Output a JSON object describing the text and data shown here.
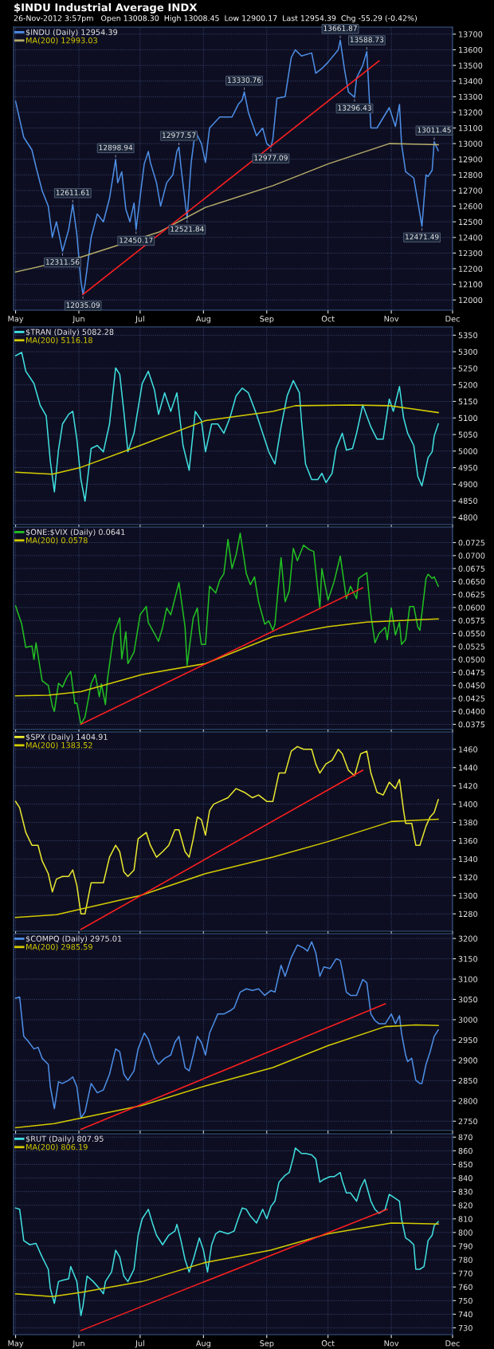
{
  "chart_data": [
    {
      "type": "line",
      "title": "$INDU Industrial Average INDX",
      "subtitle": "26-Nov-2012 3:57pm   Open 13008.30  High 13008.45  Low 12900.17  Last 12954.39  Chg -55.29 (-0.42%)",
      "xlim": [
        "2012-04-30",
        "2012-12-01"
      ],
      "xticks": [
        {
          "value": "2012-05-01",
          "label": "May"
        },
        {
          "value": "2012-06-01",
          "label": "Jun"
        },
        {
          "value": "2012-07-01",
          "label": "Jul"
        },
        {
          "value": "2012-08-01",
          "label": "Aug"
        },
        {
          "value": "2012-09-01",
          "label": "Sep"
        },
        {
          "value": "2012-10-01",
          "label": "Oct"
        },
        {
          "value": "2012-11-01",
          "label": "Nov"
        },
        {
          "value": "2012-12-01",
          "label": "Dec"
        }
      ],
      "ylim": [
        11935,
        13745
      ],
      "yticks": [
        12000,
        12100,
        12200,
        12300,
        12400,
        12500,
        12600,
        12700,
        12800,
        12900,
        13000,
        13100,
        13200,
        13300,
        13400,
        13500,
        13600,
        13700
      ],
      "grid": true,
      "legend": "top left",
      "line_style": "solid",
      "series": [
        {
          "name": "$INDU (Daily) 12954.39",
          "color": "#4d8fe6",
          "x": [
            "2012-05-01",
            "2012-05-05",
            "2012-05-09",
            "2012-05-11",
            "2012-05-14",
            "2012-05-17",
            "2012-05-19",
            "2012-05-21",
            "2012-05-24",
            "2012-05-27",
            "2012-05-29",
            "2012-05-31",
            "2012-06-02",
            "2012-06-03",
            "2012-06-04",
            "2012-06-07",
            "2012-06-10",
            "2012-06-13",
            "2012-06-16",
            "2012-06-19",
            "2012-06-20",
            "2012-06-22",
            "2012-06-24",
            "2012-06-26",
            "2012-06-28",
            "2012-06-29",
            "2012-07-03",
            "2012-07-05",
            "2012-07-06",
            "2012-07-09",
            "2012-07-11",
            "2012-07-14",
            "2012-07-17",
            "2012-07-19",
            "2012-07-20",
            "2012-07-21",
            "2012-07-24",
            "2012-07-26",
            "2012-07-28",
            "2012-07-31",
            "2012-08-02",
            "2012-08-04",
            "2012-08-09",
            "2012-08-15",
            "2012-08-18",
            "2012-08-20",
            "2012-08-21",
            "2012-08-23",
            "2012-08-27",
            "2012-08-30",
            "2012-09-01",
            "2012-09-03",
            "2012-09-04",
            "2012-09-06",
            "2012-09-10",
            "2012-09-13",
            "2012-09-15",
            "2012-09-18",
            "2012-09-23",
            "2012-09-25",
            "2012-09-28",
            "2012-10-01",
            "2012-10-06",
            "2012-10-07",
            "2012-10-09",
            "2012-10-11",
            "2012-10-14",
            "2012-10-15",
            "2012-10-18",
            "2012-10-20",
            "2012-10-22",
            "2012-10-25",
            "2012-10-31",
            "2012-11-03",
            "2012-11-05",
            "2012-11-06",
            "2012-11-08",
            "2012-11-12",
            "2012-11-15",
            "2012-11-16",
            "2012-11-18",
            "2012-11-19",
            "2012-11-21",
            "2012-11-22",
            "2012-11-24"
          ],
          "values": [
            13270,
            13040,
            12960,
            12850,
            12700,
            12600,
            12400,
            12500,
            12311.56,
            12450,
            12611.61,
            12420,
            12120,
            12035.09,
            12100,
            12400,
            12550,
            12500,
            12650,
            12898.94,
            12750,
            12820,
            12580,
            12500,
            12620,
            12450.17,
            12870,
            12950,
            12880,
            12750,
            12600,
            12750,
            12800,
            12950,
            12977.57,
            12850,
            12521.84,
            12880,
            13080,
            13000,
            12880,
            13100,
            13170,
            13170,
            13250,
            13280,
            13330.76,
            13200,
            13050,
            13100,
            13000,
            12977.09,
            13030,
            13290,
            13300,
            13550,
            13600,
            13560,
            13580,
            13450,
            13480,
            13520,
            13600,
            13661.87,
            13480,
            13330,
            13296.43,
            13420,
            13500,
            13588.73,
            13100,
            13100,
            13230,
            13110,
            13250,
            13000,
            12820,
            12780,
            12550,
            12471.49,
            12800,
            12790,
            12830,
            13011.45,
            12954.39
          ]
        },
        {
          "name": "MA(200) 12993.03",
          "color": "#b5ad6a",
          "x": [
            "2012-05-01",
            "2012-06-02",
            "2012-07-10",
            "2012-08-02",
            "2012-09-04",
            "2012-10-01",
            "2012-10-31",
            "2012-11-24"
          ],
          "values": [
            12179,
            12274,
            12433,
            12592,
            12731,
            12870,
            13000,
            12993.03
          ]
        },
        {
          "color": "#ff2020",
          "x": [
            "2012-06-03",
            "2012-10-26"
          ],
          "values": [
            12035,
            13529
          ]
        }
      ],
      "annotations": [
        {
          "text": "13661.87",
          "x": "2012-10-07",
          "y": 13661.87
        },
        {
          "text": "13588.73",
          "x": "2012-10-20",
          "y": 13588.73
        },
        {
          "text": "13330.76",
          "x": "2012-08-21",
          "y": 13330.76
        },
        {
          "text": "12977.57",
          "x": "2012-07-20",
          "y": 12977.57
        },
        {
          "text": "12898.94",
          "x": "2012-06-19",
          "y": 12898.94
        },
        {
          "text": "12611.61",
          "x": "2012-05-29",
          "y": 12611.61
        },
        {
          "text": "12311.56",
          "x": "2012-05-24",
          "y": 12311.56
        },
        {
          "text": "12035.09",
          "x": "2012-06-03",
          "y": 12035.09
        },
        {
          "text": "12450.17",
          "x": "2012-06-29",
          "y": 12450.17
        },
        {
          "text": "12521.84",
          "x": "2012-07-24",
          "y": 12521.84
        },
        {
          "text": "12977.09",
          "x": "2012-09-03",
          "y": 12977.09
        },
        {
          "text": "13296.43",
          "x": "2012-10-14",
          "y": 13296.43
        },
        {
          "text": "12471.49",
          "x": "2012-11-16",
          "y": 12471.49
        },
        {
          "text": "13011.45",
          "x": "2012-11-22",
          "y": 13011.45
        }
      ]
    },
    {
      "type": "line",
      "tick_labels": "y",
      "xlim": [
        "2012-04-30",
        "2012-12-01"
      ],
      "xticks": [
        {
          "value": "2012-05-01",
          "label": null
        },
        {
          "value": "2012-06-01",
          "label": null
        },
        {
          "value": "2012-07-01",
          "label": null
        },
        {
          "value": "2012-08-01",
          "label": null
        },
        {
          "value": "2012-09-01",
          "label": null
        },
        {
          "value": "2012-10-01",
          "label": null
        },
        {
          "value": "2012-11-01",
          "label": null
        },
        {
          "value": "2012-12-01",
          "label": null
        }
      ],
      "ylim": [
        4778,
        5375
      ],
      "yticks": [
        4800,
        4850,
        4900,
        4950,
        5000,
        5050,
        5100,
        5150,
        5200,
        5250,
        5300,
        5350
      ],
      "grid": true,
      "legend": "top left",
      "line_style": "solid",
      "series": [
        {
          "name": "$TRAN (Daily) 5082.28",
          "color": "#40e0e0",
          "x": [
            "2012-05-01",
            "2012-05-04",
            "2012-05-06",
            "2012-05-10",
            "2012-05-13",
            "2012-05-16",
            "2012-05-18",
            "2012-05-20",
            "2012-05-22",
            "2012-05-24",
            "2012-05-27",
            "2012-05-29",
            "2012-05-31",
            "2012-06-02",
            "2012-06-04",
            "2012-06-07",
            "2012-06-10",
            "2012-06-13",
            "2012-06-16",
            "2012-06-19",
            "2012-06-21",
            "2012-06-23",
            "2012-06-25",
            "2012-06-28",
            "2012-07-02",
            "2012-07-05",
            "2012-07-08",
            "2012-07-10",
            "2012-07-13",
            "2012-07-16",
            "2012-07-19",
            "2012-07-22",
            "2012-07-25",
            "2012-07-28",
            "2012-07-31",
            "2012-08-02",
            "2012-08-05",
            "2012-08-08",
            "2012-08-11",
            "2012-08-14",
            "2012-08-17",
            "2012-08-20",
            "2012-08-23",
            "2012-08-27",
            "2012-08-30",
            "2012-09-02",
            "2012-09-05",
            "2012-09-08",
            "2012-09-11",
            "2012-09-14",
            "2012-09-17",
            "2012-09-18",
            "2012-09-20",
            "2012-09-23",
            "2012-09-26",
            "2012-09-28",
            "2012-09-30",
            "2012-10-03",
            "2012-10-05",
            "2012-10-08",
            "2012-10-10",
            "2012-10-13",
            "2012-10-15",
            "2012-10-18",
            "2012-10-22",
            "2012-10-25",
            "2012-10-28",
            "2012-10-31",
            "2012-11-02",
            "2012-11-05",
            "2012-11-07",
            "2012-11-09",
            "2012-11-12",
            "2012-11-14",
            "2012-11-16",
            "2012-11-19",
            "2012-11-21",
            "2012-11-22",
            "2012-11-24"
          ],
          "values": [
            5288,
            5298,
            5241,
            5204,
            5139,
            5106,
            4970,
            4877,
            5003,
            5082,
            5111,
            5120,
            5036,
            4914,
            4849,
            5008,
            5017,
            4998,
            5082,
            5251,
            5232,
            5120,
            4998,
            5054,
            5204,
            5241,
            5185,
            5111,
            5176,
            5120,
            5176,
            5017,
            4942,
            5120,
            5092,
            4998,
            5082,
            5082,
            5054,
            5101,
            5167,
            5190,
            5176,
            5111,
            5054,
            4998,
            4961,
            5073,
            5167,
            5213,
            5176,
            5092,
            4961,
            4914,
            4914,
            4933,
            4905,
            4933,
            5008,
            5054,
            5003,
            5008,
            5054,
            5139,
            5073,
            5036,
            5036,
            5157,
            5120,
            5195,
            5101,
            5054,
            5017,
            4923,
            4895,
            4980,
            4998,
            5045,
            5082.28
          ]
        },
        {
          "name": "MA(200) 5116.18",
          "color": "#d4cc00",
          "x": [
            "2012-05-01",
            "2012-05-19",
            "2012-06-02",
            "2012-07-01",
            "2012-08-02",
            "2012-09-04",
            "2012-09-15",
            "2012-10-13",
            "2012-10-31",
            "2012-11-24"
          ],
          "values": [
            4936,
            4930,
            4951,
            5017,
            5092,
            5120,
            5137,
            5139,
            5137,
            5116.18
          ]
        }
      ]
    },
    {
      "type": "line",
      "tick_labels": "y",
      "xlim": [
        "2012-04-30",
        "2012-12-01"
      ],
      "xticks": [
        {
          "value": "2012-05-01",
          "label": null
        },
        {
          "value": "2012-06-01",
          "label": null
        },
        {
          "value": "2012-07-01",
          "label": null
        },
        {
          "value": "2012-08-01",
          "label": null
        },
        {
          "value": "2012-09-01",
          "label": null
        },
        {
          "value": "2012-10-01",
          "label": null
        },
        {
          "value": "2012-11-01",
          "label": null
        },
        {
          "value": "2012-12-01",
          "label": null
        }
      ],
      "ylim": [
        0.0365,
        0.0755
      ],
      "yticks": [
        0.0375,
        {
          "value": 0.04,
          "label": "0.0400"
        },
        0.0425,
        {
          "value": 0.045,
          "label": "0.0450"
        },
        0.0475,
        {
          "value": 0.05,
          "label": "0.0500"
        },
        0.0525,
        {
          "value": 0.055,
          "label": "0.0550"
        },
        0.0575,
        {
          "value": 0.06,
          "label": "0.0600"
        },
        0.0625,
        {
          "value": 0.065,
          "label": "0.0650"
        },
        0.0675,
        {
          "value": 0.07,
          "label": "0.0700"
        },
        0.0725
      ],
      "grid": true,
      "legend": "top left",
      "line_style": "solid",
      "series": [
        {
          "name": "$ONE:$VIX (Daily) 0.0641",
          "color": "#22c022",
          "x": [
            "2012-05-01",
            "2012-05-04",
            "2012-05-06",
            "2012-05-09",
            "2012-05-10",
            "2012-05-11",
            "2012-05-14",
            "2012-05-17",
            "2012-05-19",
            "2012-05-20",
            "2012-05-22",
            "2012-05-24",
            "2012-05-26",
            "2012-05-28",
            "2012-05-30",
            "2012-05-31",
            "2012-06-02",
            "2012-06-04",
            "2012-06-07",
            "2012-06-09",
            "2012-06-11",
            "2012-06-12",
            "2012-06-14",
            "2012-06-15",
            "2012-06-18",
            "2012-06-21",
            "2012-06-22",
            "2012-06-24",
            "2012-06-25",
            "2012-06-28",
            "2012-07-01",
            "2012-07-04",
            "2012-07-05",
            "2012-07-08",
            "2012-07-10",
            "2012-07-12",
            "2012-07-14",
            "2012-07-16",
            "2012-07-18",
            "2012-07-20",
            "2012-07-23",
            "2012-07-24",
            "2012-07-27",
            "2012-07-29",
            "2012-07-30",
            "2012-07-31",
            "2012-08-02",
            "2012-08-04",
            "2012-08-07",
            "2012-08-09",
            "2012-08-11",
            "2012-08-13",
            "2012-08-15",
            "2012-08-17",
            "2012-08-19",
            "2012-08-22",
            "2012-08-24",
            "2012-08-26",
            "2012-08-28",
            "2012-08-31",
            "2012-09-02",
            "2012-09-04",
            "2012-09-05",
            "2012-09-08",
            "2012-09-10",
            "2012-09-12",
            "2012-09-14",
            "2012-09-16",
            "2012-09-19",
            "2012-09-22",
            "2012-09-24",
            "2012-09-27",
            "2012-09-28",
            "2012-10-01",
            "2012-10-04",
            "2012-10-07",
            "2012-10-10",
            "2012-10-12",
            "2012-10-15",
            "2012-10-16",
            "2012-10-20",
            "2012-10-22",
            "2012-10-24",
            "2012-10-26",
            "2012-10-29",
            "2012-10-30",
            "2012-11-01",
            "2012-11-03",
            "2012-11-05",
            "2012-11-06",
            "2012-11-08",
            "2012-11-10",
            "2012-11-12",
            "2012-11-14",
            "2012-11-15",
            "2012-11-18",
            "2012-11-19",
            "2012-11-21",
            "2012-11-22",
            "2012-11-24"
          ],
          "values": [
            0.0603,
            0.0568,
            0.0523,
            0.0526,
            0.05,
            0.0532,
            0.0459,
            0.045,
            0.041,
            0.04,
            0.0454,
            0.0447,
            0.0465,
            0.0477,
            0.0415,
            0.0416,
            0.0375,
            0.0389,
            0.0453,
            0.0471,
            0.0428,
            0.0453,
            0.0413,
            0.0462,
            0.0547,
            0.058,
            0.0501,
            0.0553,
            0.0492,
            0.0514,
            0.0586,
            0.0602,
            0.0571,
            0.055,
            0.0535,
            0.0562,
            0.0599,
            0.0586,
            0.0617,
            0.0648,
            0.0562,
            0.0489,
            0.058,
            0.0599,
            0.0556,
            0.0529,
            0.0529,
            0.0641,
            0.0628,
            0.0653,
            0.0665,
            0.0731,
            0.0675,
            0.0702,
            0.0743,
            0.0665,
            0.0644,
            0.0659,
            0.0611,
            0.0568,
            0.0574,
            0.0556,
            0.0568,
            0.0696,
            0.0611,
            0.0632,
            0.0714,
            0.069,
            0.072,
            0.0711,
            0.0708,
            0.0599,
            0.0675,
            0.0614,
            0.065,
            0.0699,
            0.0617,
            0.0641,
            0.0617,
            0.0656,
            0.0667,
            0.0586,
            0.0532,
            0.055,
            0.0562,
            0.0538,
            0.0599,
            0.0547,
            0.0571,
            0.0529,
            0.0538,
            0.0602,
            0.0602,
            0.0562,
            0.0556,
            0.0656,
            0.0664,
            0.0656,
            0.0659,
            0.0641
          ]
        },
        {
          "name": "MA(200) 0.0578",
          "color": "#d4cc00",
          "x": [
            "2012-05-01",
            "2012-05-17",
            "2012-06-02",
            "2012-07-02",
            "2012-08-02",
            "2012-09-04",
            "2012-10-01",
            "2012-10-20",
            "2012-11-24"
          ],
          "values": [
            0.043,
            0.0431,
            0.0438,
            0.0471,
            0.0492,
            0.0544,
            0.0563,
            0.0572,
            0.0578
          ]
        },
        {
          "color": "#ff2020",
          "x": [
            "2012-06-02",
            "2012-10-18"
          ],
          "values": [
            0.0375,
            0.0638
          ]
        }
      ]
    },
    {
      "type": "line",
      "tick_labels": "y",
      "xlim": [
        "2012-04-30",
        "2012-12-01"
      ],
      "xticks": [
        {
          "value": "2012-05-01",
          "label": null
        },
        {
          "value": "2012-06-01",
          "label": null
        },
        {
          "value": "2012-07-01",
          "label": null
        },
        {
          "value": "2012-08-01",
          "label": null
        },
        {
          "value": "2012-09-01",
          "label": null
        },
        {
          "value": "2012-10-01",
          "label": null
        },
        {
          "value": "2012-11-01",
          "label": null
        },
        {
          "value": "2012-12-01",
          "label": null
        }
      ],
      "ylim": [
        1261,
        1479
      ],
      "yticks": [
        1280,
        1300,
        1320,
        1340,
        1360,
        1380,
        1400,
        1420,
        1440,
        1460
      ],
      "grid": true,
      "legend": "top left",
      "line_style": "solid",
      "series": [
        {
          "name": "$SPX (Daily) 1404.91",
          "color": "#e8e830",
          "x": [
            "2012-05-01",
            "2012-05-03",
            "2012-05-06",
            "2012-05-09",
            "2012-05-12",
            "2012-05-14",
            "2012-05-17",
            "2012-05-19",
            "2012-05-21",
            "2012-05-24",
            "2012-05-27",
            "2012-05-29",
            "2012-05-31",
            "2012-06-02",
            "2012-06-04",
            "2012-06-07",
            "2012-06-10",
            "2012-06-13",
            "2012-06-16",
            "2012-06-19",
            "2012-06-21",
            "2012-06-23",
            "2012-06-25",
            "2012-06-28",
            "2012-06-30",
            "2012-07-04",
            "2012-07-06",
            "2012-07-09",
            "2012-07-12",
            "2012-07-15",
            "2012-07-18",
            "2012-07-20",
            "2012-07-23",
            "2012-07-25",
            "2012-07-27",
            "2012-07-29",
            "2012-07-31",
            "2012-08-02",
            "2012-08-04",
            "2012-08-06",
            "2012-08-09",
            "2012-08-13",
            "2012-08-17",
            "2012-08-21",
            "2012-08-25",
            "2012-08-28",
            "2012-09-01",
            "2012-09-04",
            "2012-09-07",
            "2012-09-10",
            "2012-09-13",
            "2012-09-16",
            "2012-09-19",
            "2012-09-23",
            "2012-09-25",
            "2012-09-27",
            "2012-09-30",
            "2012-10-03",
            "2012-10-06",
            "2012-10-08",
            "2012-10-11",
            "2012-10-14",
            "2012-10-17",
            "2012-10-20",
            "2012-10-22",
            "2012-10-25",
            "2012-10-28",
            "2012-10-31",
            "2012-11-03",
            "2012-11-05",
            "2012-11-07",
            "2012-11-08",
            "2012-11-11",
            "2012-11-13",
            "2012-11-15",
            "2012-11-18",
            "2012-11-20",
            "2012-11-22",
            "2012-11-24"
          ],
          "values": [
            1403,
            1396,
            1369,
            1355,
            1355,
            1338,
            1324,
            1304,
            1318,
            1321,
            1321,
            1328,
            1311,
            1280,
            1280,
            1314,
            1314,
            1314,
            1342,
            1355,
            1348,
            1326,
            1321,
            1328,
            1362,
            1369,
            1355,
            1342,
            1348,
            1355,
            1372,
            1372,
            1348,
            1342,
            1362,
            1386,
            1383,
            1366,
            1393,
            1400,
            1403,
            1407,
            1417,
            1413,
            1407,
            1410,
            1403,
            1403,
            1434,
            1434,
            1458,
            1463,
            1460,
            1460,
            1444,
            1434,
            1444,
            1448,
            1460,
            1455,
            1437,
            1431,
            1455,
            1458,
            1434,
            1413,
            1410,
            1424,
            1417,
            1427,
            1393,
            1379,
            1379,
            1355,
            1355,
            1376,
            1386,
            1391,
            1404.91
          ]
        },
        {
          "name": "MA(200) 1383.52",
          "color": "#d4cc00",
          "x": [
            "2012-05-01",
            "2012-05-21",
            "2012-07-01",
            "2012-08-02",
            "2012-09-04",
            "2012-10-01",
            "2012-11-01",
            "2012-11-24"
          ],
          "values": [
            1276,
            1279,
            1300,
            1324,
            1342,
            1359,
            1381,
            1383.52
          ]
        },
        {
          "color": "#ff2020",
          "x": [
            "2012-06-02",
            "2012-10-18"
          ],
          "values": [
            1263,
            1437
          ]
        }
      ]
    },
    {
      "type": "line",
      "tick_labels": "y",
      "xlim": [
        "2012-04-30",
        "2012-12-01"
      ],
      "xticks": [
        {
          "value": "2012-05-01",
          "label": null
        },
        {
          "value": "2012-06-01",
          "label": null
        },
        {
          "value": "2012-07-01",
          "label": null
        },
        {
          "value": "2012-08-01",
          "label": null
        },
        {
          "value": "2012-09-01",
          "label": null
        },
        {
          "value": "2012-10-01",
          "label": null
        },
        {
          "value": "2012-11-01",
          "label": null
        },
        {
          "value": "2012-12-01",
          "label": null
        }
      ],
      "ylim": [
        2727,
        3212
      ],
      "yticks": [
        2750,
        2800,
        2850,
        2900,
        2950,
        3000,
        3050,
        3100,
        3150,
        3200
      ],
      "grid": true,
      "legend": "top left",
      "line_style": "solid",
      "series": [
        {
          "name": "$COMPQ (Daily) 2975.01",
          "color": "#4d8fe6",
          "x": [
            "2012-05-01",
            "2012-05-03",
            "2012-05-05",
            "2012-05-07",
            "2012-05-10",
            "2012-05-12",
            "2012-05-14",
            "2012-05-17",
            "2012-05-18",
            "2012-05-20",
            "2012-05-22",
            "2012-05-24",
            "2012-05-27",
            "2012-05-29",
            "2012-05-31",
            "2012-06-02",
            "2012-06-04",
            "2012-06-07",
            "2012-06-10",
            "2012-06-13",
            "2012-06-16",
            "2012-06-19",
            "2012-06-21",
            "2012-06-23",
            "2012-06-25",
            "2012-06-28",
            "2012-06-30",
            "2012-07-03",
            "2012-07-05",
            "2012-07-08",
            "2012-07-10",
            "2012-07-13",
            "2012-07-16",
            "2012-07-18",
            "2012-07-20",
            "2012-07-23",
            "2012-07-25",
            "2012-07-27",
            "2012-07-29",
            "2012-07-31",
            "2012-08-02",
            "2012-08-04",
            "2012-08-06",
            "2012-08-08",
            "2012-08-11",
            "2012-08-14",
            "2012-08-16",
            "2012-08-19",
            "2012-08-22",
            "2012-08-25",
            "2012-08-28",
            "2012-08-31",
            "2012-09-03",
            "2012-09-05",
            "2012-09-08",
            "2012-09-10",
            "2012-09-13",
            "2012-09-16",
            "2012-09-19",
            "2012-09-21",
            "2012-09-23",
            "2012-09-25",
            "2012-09-27",
            "2012-09-29",
            "2012-10-02",
            "2012-10-05",
            "2012-10-07",
            "2012-10-08",
            "2012-10-10",
            "2012-10-12",
            "2012-10-15",
            "2012-10-18",
            "2012-10-20",
            "2012-10-22",
            "2012-10-24",
            "2012-10-26",
            "2012-10-29",
            "2012-11-01",
            "2012-11-03",
            "2012-11-05",
            "2012-11-06",
            "2012-11-08",
            "2012-11-09",
            "2012-11-11",
            "2012-11-13",
            "2012-11-15",
            "2012-11-16",
            "2012-11-18",
            "2012-11-20",
            "2012-11-22",
            "2012-11-24"
          ],
          "values": [
            3053,
            3056,
            2959,
            2948,
            2928,
            2932,
            2905,
            2890,
            2835,
            2781,
            2847,
            2843,
            2851,
            2859,
            2835,
            2758,
            2773,
            2843,
            2820,
            2827,
            2866,
            2928,
            2921,
            2866,
            2851,
            2874,
            2928,
            2967,
            2952,
            2905,
            2890,
            2905,
            2913,
            2944,
            2959,
            2882,
            2874,
            2913,
            2959,
            2944,
            2913,
            2967,
            2990,
            3014,
            3014,
            3022,
            3029,
            3068,
            3076,
            3072,
            3076,
            3060,
            3072,
            3068,
            3134,
            3107,
            3153,
            3184,
            3177,
            3169,
            3192,
            3165,
            3107,
            3130,
            3126,
            3150,
            3146,
            3122,
            3068,
            3060,
            3060,
            3099,
            3091,
            3014,
            2998,
            2990,
            2990,
            3014,
            2990,
            3010,
            2967,
            2913,
            2897,
            2905,
            2851,
            2843,
            2843,
            2890,
            2921,
            2959,
            2975.01
          ]
        },
        {
          "name": "MA(200) 2985.59",
          "color": "#d4cc00",
          "x": [
            "2012-05-01",
            "2012-05-20",
            "2012-07-02",
            "2012-08-02",
            "2012-09-04",
            "2012-10-01",
            "2012-10-29",
            "2012-11-13",
            "2012-11-24"
          ],
          "values": [
            2734,
            2744,
            2789,
            2837,
            2882,
            2936,
            2983,
            2987,
            2985.59
          ]
        },
        {
          "color": "#ff2020",
          "x": [
            "2012-06-02",
            "2012-10-29"
          ],
          "values": [
            2730,
            3039
          ]
        }
      ]
    },
    {
      "type": "line",
      "xlim": [
        "2012-04-30",
        "2012-12-01"
      ],
      "xticks": [
        {
          "value": "2012-05-01",
          "label": "May"
        },
        {
          "value": "2012-06-01",
          "label": "Jun"
        },
        {
          "value": "2012-07-01",
          "label": "Jul"
        },
        {
          "value": "2012-08-01",
          "label": "Aug"
        },
        {
          "value": "2012-09-01",
          "label": "Sep"
        },
        {
          "value": "2012-10-01",
          "label": "Oct"
        },
        {
          "value": "2012-11-01",
          "label": "Nov"
        },
        {
          "value": "2012-12-01",
          "label": "Dec"
        }
      ],
      "ylim": [
        725,
        872.5
      ],
      "yticks": [
        730,
        740,
        750,
        760,
        770,
        780,
        790,
        800,
        810,
        820,
        830,
        840,
        850,
        860,
        870
      ],
      "grid": true,
      "legend": "top left",
      "line_style": "solid",
      "series": [
        {
          "name": "$RUT (Daily) 807.95",
          "color": "#40e0e0",
          "x": [
            "2012-05-01",
            "2012-05-03",
            "2012-05-05",
            "2012-05-08",
            "2012-05-11",
            "2012-05-14",
            "2012-05-17",
            "2012-05-18",
            "2012-05-20",
            "2012-05-22",
            "2012-05-24",
            "2012-05-27",
            "2012-05-28",
            "2012-05-31",
            "2012-06-02",
            "2012-06-03",
            "2012-06-05",
            "2012-06-08",
            "2012-06-11",
            "2012-06-13",
            "2012-06-14",
            "2012-06-17",
            "2012-06-19",
            "2012-06-21",
            "2012-06-23",
            "2012-06-25",
            "2012-06-28",
            "2012-06-30",
            "2012-07-02",
            "2012-07-05",
            "2012-07-07",
            "2012-07-09",
            "2012-07-12",
            "2012-07-15",
            "2012-07-18",
            "2012-07-19",
            "2012-07-21",
            "2012-07-23",
            "2012-07-25",
            "2012-07-27",
            "2012-07-30",
            "2012-08-01",
            "2012-08-03",
            "2012-08-05",
            "2012-08-07",
            "2012-08-09",
            "2012-08-13",
            "2012-08-16",
            "2012-08-18",
            "2012-08-20",
            "2012-08-22",
            "2012-08-24",
            "2012-08-27",
            "2012-08-30",
            "2012-09-01",
            "2012-09-03",
            "2012-09-05",
            "2012-09-07",
            "2012-09-10",
            "2012-09-12",
            "2012-09-14",
            "2012-09-15",
            "2012-09-18",
            "2012-09-20",
            "2012-09-23",
            "2012-09-25",
            "2012-09-27",
            "2012-09-29",
            "2012-10-02",
            "2012-10-04",
            "2012-10-07",
            "2012-10-08",
            "2012-10-10",
            "2012-10-12",
            "2012-10-15",
            "2012-10-17",
            "2012-10-19",
            "2012-10-22",
            "2012-10-24",
            "2012-10-26",
            "2012-10-29",
            "2012-10-31",
            "2012-11-02",
            "2012-11-05",
            "2012-11-06",
            "2012-11-08",
            "2012-11-10",
            "2012-11-12",
            "2012-11-13",
            "2012-11-15",
            "2012-11-17",
            "2012-11-18",
            "2012-11-19",
            "2012-11-21",
            "2012-11-22",
            "2012-11-24"
          ],
          "values": [
            818,
            817,
            794,
            791,
            792,
            782,
            773,
            759,
            748,
            764,
            765,
            766,
            775,
            764,
            739,
            746,
            768,
            764,
            759,
            755,
            764,
            771,
            787,
            782,
            768,
            764,
            773,
            798,
            810,
            817,
            807,
            798,
            791,
            798,
            801,
            806,
            794,
            780,
            771,
            780,
            796,
            787,
            771,
            791,
            799,
            801,
            799,
            801,
            810,
            818,
            817,
            812,
            807,
            817,
            810,
            819,
            823,
            837,
            842,
            844,
            855,
            862,
            858,
            858,
            857,
            854,
            837,
            839,
            841,
            841,
            844,
            838,
            829,
            829,
            823,
            833,
            839,
            823,
            817,
            814,
            817,
            828,
            826,
            823,
            810,
            796,
            794,
            791,
            773,
            773,
            775,
            784,
            794,
            798,
            805,
            807.95
          ]
        },
        {
          "name": "MA(200) 806.19",
          "color": "#d4cc00",
          "x": [
            "2012-05-01",
            "2012-05-19",
            "2012-06-02",
            "2012-07-02",
            "2012-08-02",
            "2012-09-03",
            "2012-10-01",
            "2012-11-01",
            "2012-11-24"
          ],
          "values": [
            755,
            753,
            756,
            764,
            778,
            787,
            799,
            807,
            806.19
          ]
        },
        {
          "color": "#ff2020",
          "x": [
            "2012-06-02",
            "2012-10-30"
          ],
          "values": [
            728,
            817
          ]
        }
      ]
    }
  ]
}
